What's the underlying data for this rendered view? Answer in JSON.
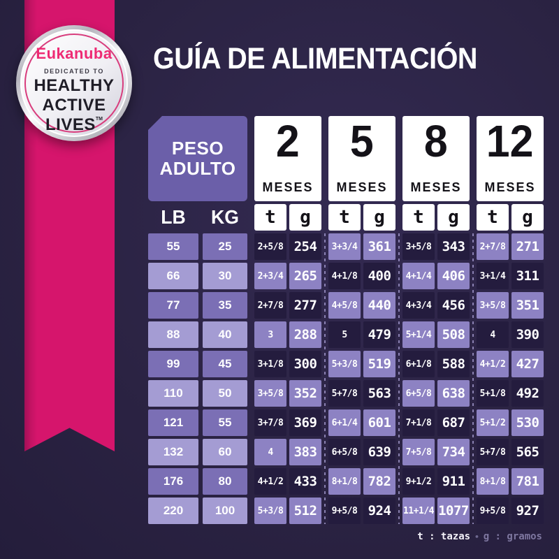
{
  "title": "GUÍA DE ALIMENTACIÓN",
  "badge": {
    "brand": "Eukanuba",
    "dedicated": "DEDICATED TO",
    "line1": "HEALTHY",
    "line2": "ACTIVE",
    "line3": "LIVES",
    "tm": "TM"
  },
  "table": {
    "peso_line1": "PESO",
    "peso_line2": "ADULTO",
    "months": [
      {
        "number": "2",
        "label": "MESES"
      },
      {
        "number": "5",
        "label": "MESES"
      },
      {
        "number": "8",
        "label": "MESES"
      },
      {
        "number": "12",
        "label": "MESES"
      }
    ]
  },
  "chart_data": {
    "type": "table",
    "title": "GUÍA DE ALIMENTACIÓN",
    "column_groups": [
      "PESO ADULTO",
      "2 MESES",
      "5 MESES",
      "8 MESES",
      "12 MESES"
    ],
    "columns": [
      "LB",
      "KG",
      "t",
      "g",
      "t",
      "g",
      "t",
      "g",
      "t",
      "g"
    ],
    "units": {
      "t": "tazas",
      "g": "gramos"
    },
    "rows": [
      [
        "55",
        "25",
        "2+5/8",
        "254",
        "3+3/4",
        "361",
        "3+5/8",
        "343",
        "2+7/8",
        "271"
      ],
      [
        "66",
        "30",
        "2+3/4",
        "265",
        "4+1/8",
        "400",
        "4+1/4",
        "406",
        "3+1/4",
        "311"
      ],
      [
        "77",
        "35",
        "2+7/8",
        "277",
        "4+5/8",
        "440",
        "4+3/4",
        "456",
        "3+5/8",
        "351"
      ],
      [
        "88",
        "40",
        "3",
        "288",
        "5",
        "479",
        "5+1/4",
        "508",
        "4",
        "390"
      ],
      [
        "99",
        "45",
        "3+1/8",
        "300",
        "5+3/8",
        "519",
        "6+1/8",
        "588",
        "4+1/2",
        "427"
      ],
      [
        "110",
        "50",
        "3+5/8",
        "352",
        "5+7/8",
        "563",
        "6+5/8",
        "638",
        "5+1/8",
        "492"
      ],
      [
        "121",
        "55",
        "3+7/8",
        "369",
        "6+1/4",
        "601",
        "7+1/8",
        "687",
        "5+1/2",
        "530"
      ],
      [
        "132",
        "60",
        "4",
        "383",
        "6+5/8",
        "639",
        "7+5/8",
        "734",
        "5+7/8",
        "565"
      ],
      [
        "176",
        "80",
        "4+1/2",
        "433",
        "8+1/8",
        "782",
        "9+1/2",
        "911",
        "8+1/8",
        "781"
      ],
      [
        "220",
        "100",
        "5+3/8",
        "512",
        "9+5/8",
        "924",
        "11+1/4",
        "1077",
        "9+5/8",
        "927"
      ]
    ]
  },
  "footer": {
    "t_label": "t : tazas",
    "separator": "•",
    "g_label": "g : gramos"
  },
  "colors": {
    "background": "#2b2343",
    "ribbon_pink": "#d6156c",
    "brand_pink": "#ee2b74",
    "cell_dark": "#241c3e",
    "cell_light": "#8d82c3",
    "lbkg_even": "#7b6fb5",
    "lbkg_odd": "#a49cd3",
    "peso_header": "#6b5fa9"
  }
}
